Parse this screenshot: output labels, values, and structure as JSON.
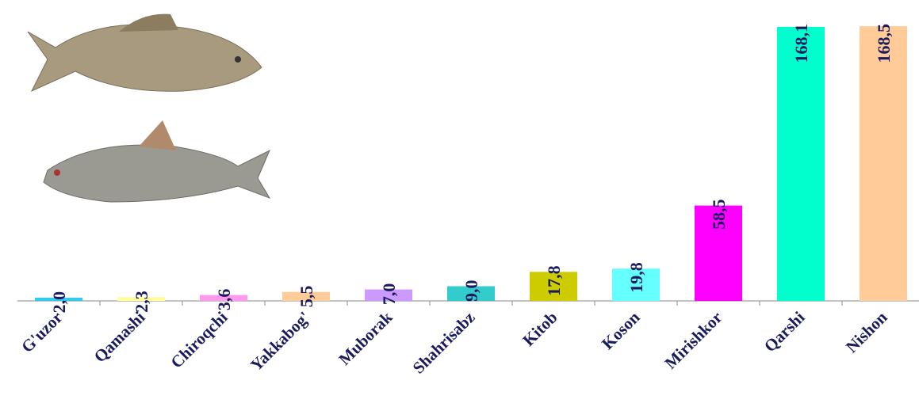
{
  "chart_data": {
    "type": "bar",
    "categories": [
      "G'uzor",
      "Qamashi",
      "Chiroqchi",
      "Yakkabog'",
      "Muborak",
      "Shahrisabz",
      "Kitob",
      "Koson",
      "Mirishkor",
      "Qarshi",
      "Nishon"
    ],
    "values": [
      2.0,
      2.3,
      3.6,
      5.5,
      7.0,
      9.0,
      17.8,
      19.8,
      58.5,
      168.1,
      168.5
    ],
    "value_labels": [
      "2,0",
      "2,3",
      "3,6",
      "5,5",
      "7,0",
      "9,0",
      "17,8",
      "19,8",
      "58,5",
      "168,1",
      "168,5"
    ],
    "colors": [
      "#33ccee",
      "#ffff99",
      "#ff99ee",
      "#ffcc99",
      "#cc99ff",
      "#33cccc",
      "#cccc00",
      "#66ffff",
      "#ff00ff",
      "#00ffcc",
      "#ffcc99"
    ],
    "ylim": [
      0,
      170
    ]
  }
}
